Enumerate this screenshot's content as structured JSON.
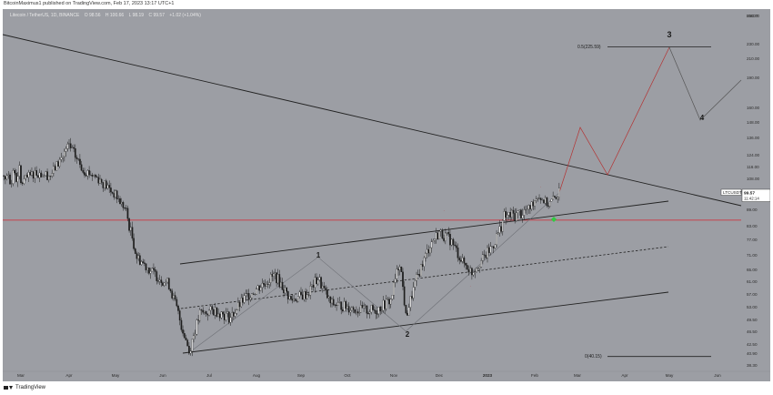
{
  "header": {
    "published": "BitcoinMaximus1 published on TradingView.com, Feb 17, 2023 13:17 UTC+1"
  },
  "symbol_info": {
    "name": "Litecoin / TetherUS, 1D, BINANCE",
    "open": "O 98.56",
    "high": "H 100.66",
    "low": "L 98.19",
    "close": "C 99.57",
    "change": "+1.02 (+1.04%)"
  },
  "price_tag": {
    "symbol": "LTCUSDT",
    "price": "99.57",
    "countdown": "11:42:14"
  },
  "labels": {
    "fib_top": "0.5(225.59)",
    "fib_bottom": "0(40.15)",
    "wave1": "1",
    "wave2": "2",
    "wave3": "3",
    "wave4": "4",
    "currency": "USDT"
  },
  "footer": {
    "brand": "TradingView"
  },
  "colors": {
    "background": "#9c9ea4",
    "up": "#f2f2f2",
    "down": "#1e1e1e",
    "support": "#d6242f",
    "projection": "#b43232",
    "support_marker": "#2ecc40"
  },
  "chart_data": {
    "type": "candlestick",
    "symbol": "LTCUSDT",
    "timeframe": "1D",
    "exchange": "BINANCE",
    "y_scale": "log",
    "y_ticks": [
      250,
      230,
      210,
      190,
      160,
      148,
      136,
      124,
      116,
      108,
      99,
      89,
      83,
      77,
      71,
      65,
      61,
      57,
      53,
      49.5,
      46.5,
      42.5,
      40.9,
      38.3
    ],
    "y_tick_labels": [
      "250.00",
      "230.00",
      "210.00",
      "190.00",
      "160.00",
      "148.00",
      "136.00",
      "124.00",
      "116.00",
      "108.00",
      "99.00",
      "89.00",
      "83.00",
      "77.00",
      "71.00",
      "65.00",
      "61.00",
      "57.00",
      "53.00",
      "49.50",
      "46.50",
      "42.50",
      "40.90",
      "38.30"
    ],
    "x_labels": [
      "Mar",
      "Apr",
      "May",
      "Jun",
      "Jul",
      "Aug",
      "Sep",
      "Oct",
      "Nov",
      "Dec",
      "2023",
      "Feb",
      "Mar",
      "Apr",
      "May",
      "Jun"
    ],
    "x_label_dates": [
      "2022-03-01",
      "2022-04-01",
      "2022-05-01",
      "2022-06-01",
      "2022-07-01",
      "2022-08-01",
      "2022-09-01",
      "2022-10-01",
      "2022-11-01",
      "2022-12-01",
      "2023-01-01",
      "2023-02-01",
      "2023-03-01",
      "2023-04-01",
      "2023-05-01",
      "2023-06-01"
    ],
    "price_path": [
      [
        "2022-03-01",
        105
      ],
      [
        "2022-03-10",
        112
      ],
      [
        "2022-03-20",
        110
      ],
      [
        "2022-04-01",
        130
      ],
      [
        "2022-04-10",
        114
      ],
      [
        "2022-04-20",
        108
      ],
      [
        "2022-05-01",
        98
      ],
      [
        "2022-05-08",
        88
      ],
      [
        "2022-05-15",
        70
      ],
      [
        "2022-05-25",
        64
      ],
      [
        "2022-06-05",
        60
      ],
      [
        "2022-06-13",
        48
      ],
      [
        "2022-06-18",
        41
      ],
      [
        "2022-06-25",
        51
      ],
      [
        "2022-07-05",
        52
      ],
      [
        "2022-07-15",
        50
      ],
      [
        "2022-07-25",
        56
      ],
      [
        "2022-08-05",
        60
      ],
      [
        "2022-08-14",
        63
      ],
      [
        "2022-08-25",
        55
      ],
      [
        "2022-09-05",
        57
      ],
      [
        "2022-09-12",
        62
      ],
      [
        "2022-09-20",
        54
      ],
      [
        "2022-10-01",
        53
      ],
      [
        "2022-10-10",
        52
      ],
      [
        "2022-10-20",
        52
      ],
      [
        "2022-10-30",
        55
      ],
      [
        "2022-11-05",
        68
      ],
      [
        "2022-11-09",
        50
      ],
      [
        "2022-11-15",
        60
      ],
      [
        "2022-11-25",
        75
      ],
      [
        "2022-12-01",
        80
      ],
      [
        "2022-12-08",
        77
      ],
      [
        "2022-12-16",
        68
      ],
      [
        "2022-12-22",
        64
      ],
      [
        "2022-12-30",
        70
      ],
      [
        "2023-01-05",
        75
      ],
      [
        "2023-01-12",
        86
      ],
      [
        "2023-01-20",
        87
      ],
      [
        "2023-01-28",
        89
      ],
      [
        "2023-02-03",
        98
      ],
      [
        "2023-02-10",
        92
      ],
      [
        "2023-02-17",
        99.57
      ]
    ],
    "annotations": {
      "support_level": 85,
      "fib_levels": [
        {
          "label": "0.5(225.59)",
          "value": 225.59
        },
        {
          "label": "0(40.15)",
          "value": 40.15
        }
      ],
      "waves": [
        {
          "label": "1",
          "date": "2022-09-12",
          "value": 70
        },
        {
          "label": "2",
          "date": "2022-11-09",
          "value": 45
        },
        {
          "label": "3",
          "date": "2023-05-01",
          "value": 250
        },
        {
          "label": "4",
          "date": "2023-05-20",
          "value": 150
        }
      ]
    }
  }
}
